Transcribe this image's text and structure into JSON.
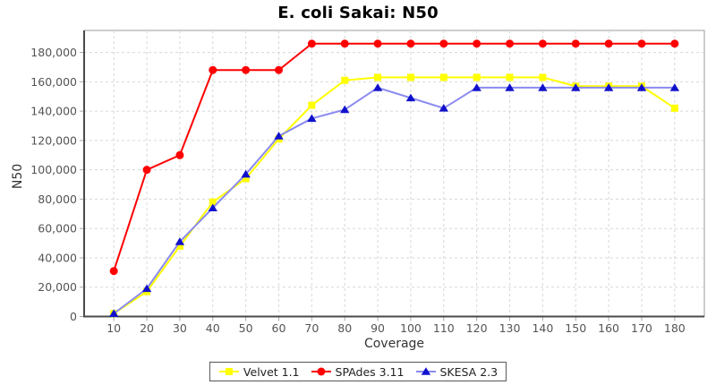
{
  "chart_data": {
    "type": "line",
    "title": "E. coli Sakai: N50",
    "xlabel": "Coverage",
    "ylabel": "N50",
    "x": [
      10,
      20,
      30,
      40,
      50,
      60,
      70,
      80,
      90,
      100,
      110,
      120,
      130,
      140,
      150,
      160,
      170,
      180
    ],
    "series": [
      {
        "name": "Velvet 1.1",
        "marker": "square",
        "color": "#ffff00",
        "line_color": "#ffff00",
        "values": [
          2000,
          17000,
          48000,
          78000,
          94000,
          121000,
          144000,
          161000,
          163000,
          163000,
          163000,
          163000,
          163000,
          163000,
          157000,
          157000,
          157000,
          142000
        ]
      },
      {
        "name": "SPAdes 3.11",
        "marker": "circle",
        "color": "#ff0000",
        "line_color": "#ff0000",
        "values": [
          31000,
          100000,
          110000,
          168000,
          168000,
          168000,
          186000,
          186000,
          186000,
          186000,
          186000,
          186000,
          186000,
          186000,
          186000,
          186000,
          186000,
          186000
        ]
      },
      {
        "name": "SKESA 2.3",
        "marker": "triangle",
        "color": "#1111cc",
        "line_color": "#8a8af0",
        "values": [
          2000,
          19000,
          51000,
          74000,
          97000,
          123000,
          135000,
          141000,
          156000,
          149000,
          142000,
          156000,
          156000,
          156000,
          156000,
          156000,
          156000,
          156000
        ]
      }
    ],
    "xlim": [
      1,
      189
    ],
    "ylim": [
      0,
      195000
    ],
    "xticks": [
      10,
      20,
      30,
      40,
      50,
      60,
      70,
      80,
      90,
      100,
      110,
      120,
      130,
      140,
      150,
      160,
      170,
      180
    ],
    "yticks": [
      0,
      20000,
      40000,
      60000,
      80000,
      100000,
      120000,
      140000,
      160000,
      180000
    ],
    "grid": true,
    "grid_style": "dashed",
    "legend_position": "bottom"
  }
}
